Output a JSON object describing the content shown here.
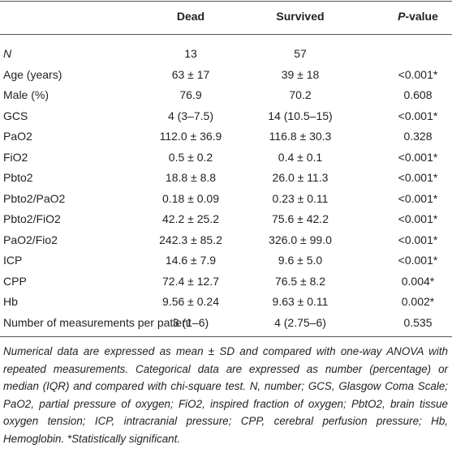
{
  "table": {
    "header": [
      "",
      "Dead",
      "Survived",
      {
        "italic": "P",
        "rest": "-value"
      }
    ],
    "rows": [
      [
        "N",
        "13",
        "57",
        ""
      ],
      [
        "Age (years)",
        "63 ± 17",
        "39 ± 18",
        "<0.001*"
      ],
      [
        "Male (%)",
        "76.9",
        "70.2",
        "0.608"
      ],
      [
        "GCS",
        "4 (3–7.5)",
        "14 (10.5–15)",
        "<0.001*"
      ],
      [
        "PaO2",
        "112.0 ± 36.9",
        "116.8 ± 30.3",
        "0.328"
      ],
      [
        "FiO2",
        "0.5 ± 0.2",
        "0.4 ± 0.1",
        "<0.001*"
      ],
      [
        "Pbto2",
        "18.8 ± 8.8",
        "26.0 ± 11.3",
        "<0.001*"
      ],
      [
        "Pbto2/PaO2",
        "0.18 ± 0.09",
        "0.23 ± 0.11",
        "<0.001*"
      ],
      [
        "Pbto2/FiO2",
        "42.2 ± 25.2",
        "75.6 ± 42.2",
        "<0.001*"
      ],
      [
        "PaO2/Fio2",
        "242.3 ± 85.2",
        "326.0 ± 99.0",
        "<0.001*"
      ],
      [
        "ICP",
        "14.6 ± 7.9",
        "9.6 ± 5.0",
        "<0.001*"
      ],
      [
        "CPP",
        "72.4 ± 12.7",
        "76.5 ± 8.2",
        "0.004*"
      ],
      [
        "Hb",
        "9.56 ± 0.24",
        "9.63 ± 0.11",
        "0.002*"
      ],
      [
        "Number of measurements per patient",
        "3 (1–6)",
        "4 (2.75–6)",
        "0.535"
      ]
    ]
  },
  "footnote": "Numerical data are expressed as mean ± SD and compared with one-way ANOVA with repeated measurements. Categorical data are expressed as number (percentage) or median (IQR) and compared with chi-square test. N, number; GCS, Glasgow Coma Scale; PaO2, partial pressure of oxygen; FiO2, inspired fraction of oxygen; PbtO2, brain tissue oxygen tension; ICP, intracranial pressure; CPP, cerebral perfusion pressure; Hb, Hemoglobin. *Statistically significant."
}
